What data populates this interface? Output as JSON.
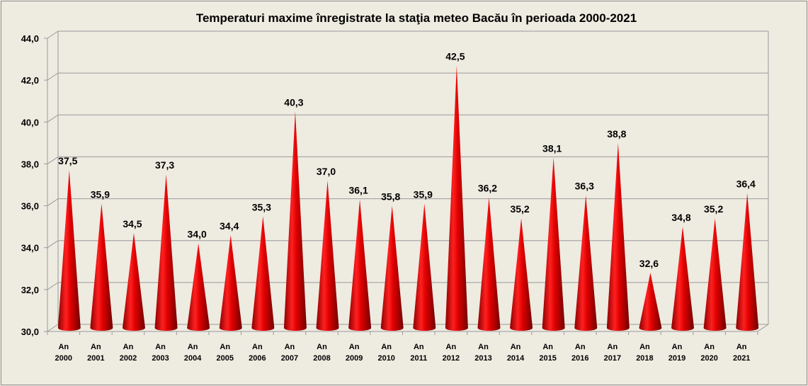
{
  "chart_data": {
    "type": "bar",
    "style": "3d-cone",
    "title": "Temperaturi maxime înregistrate la staţia meteo Bacău în perioada 2000-2021",
    "xlabel": "",
    "ylabel": "",
    "ylim": [
      30,
      44
    ],
    "yticks": [
      "30,0",
      "32,0",
      "34,0",
      "36,0",
      "38,0",
      "40,0",
      "42,0",
      "44,0"
    ],
    "ytick_values": [
      30,
      32,
      34,
      36,
      38,
      40,
      42,
      44
    ],
    "grid": true,
    "categories": [
      [
        "An",
        "2000"
      ],
      [
        "An",
        "2001"
      ],
      [
        "An",
        "2002"
      ],
      [
        "An",
        "2003"
      ],
      [
        "An",
        "2004"
      ],
      [
        "An",
        "2005"
      ],
      [
        "An",
        "2006"
      ],
      [
        "An",
        "2007"
      ],
      [
        "An",
        "2008"
      ],
      [
        "An",
        "2009"
      ],
      [
        "An",
        "2010"
      ],
      [
        "An",
        "2011"
      ],
      [
        "An",
        "2012"
      ],
      [
        "An",
        "2013"
      ],
      [
        "An",
        "2014"
      ],
      [
        "An",
        "2015"
      ],
      [
        "An",
        "2016"
      ],
      [
        "An",
        "2017"
      ],
      [
        "An",
        "2018"
      ],
      [
        "An",
        "2019"
      ],
      [
        "An",
        "2020"
      ],
      [
        "An",
        "2021"
      ]
    ],
    "values": [
      37.5,
      35.9,
      34.5,
      37.3,
      34.0,
      34.4,
      35.3,
      40.3,
      37.0,
      36.1,
      35.8,
      35.9,
      42.5,
      36.2,
      35.2,
      38.1,
      36.3,
      38.8,
      32.6,
      34.8,
      35.2,
      36.4
    ],
    "data_labels": [
      "37,5",
      "35,9",
      "34,5",
      "37,3",
      "34,0",
      "34,4",
      "35,3",
      "40,3",
      "37,0",
      "36,1",
      "35,8",
      "35,9",
      "42,5",
      "36,2",
      "35,2",
      "38,1",
      "36,3",
      "38,8",
      "32,6",
      "34,8",
      "35,2",
      "36,4"
    ],
    "colors": {
      "cone": "#d40000",
      "cone_dark": "#7a0000",
      "background": "#eeebe1",
      "grid": "#9a9a9a"
    }
  }
}
